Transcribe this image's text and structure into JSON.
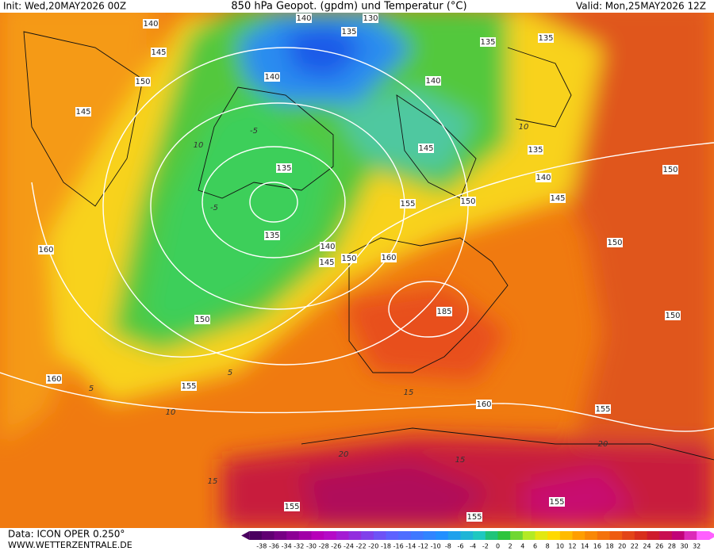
{
  "header": {
    "init": "Init: Wed,20MAY2026 00Z",
    "title": "850 hPa Geopot. (gpdm) und Temperatur (°C)",
    "valid": "Valid: Mon,25MAY2026 12Z"
  },
  "footer": {
    "data_source": "Data: ICON OPER 0.250°",
    "website": "WWW.WETTERZENTRALE.DE"
  },
  "colorbar_labels": [
    "-38",
    "-36",
    "-34",
    "-32",
    "-30",
    "-28",
    "-26",
    "-24",
    "-22",
    "-20",
    "-18",
    "-16",
    "-14",
    "-12",
    "-10",
    "-8",
    "-6",
    "-4",
    "-2",
    "0",
    "2",
    "4",
    "6",
    "8",
    "10",
    "12",
    "14",
    "16",
    "18",
    "20",
    "22",
    "24",
    "26",
    "28",
    "30",
    "32"
  ],
  "geopotential_labels": [
    "140",
    "140",
    "130",
    "135",
    "135",
    "135",
    "145",
    "150",
    "145",
    "140",
    "140",
    "135",
    "135",
    "145",
    "135",
    "140",
    "145",
    "150",
    "155",
    "150",
    "160",
    "140",
    "145",
    "150",
    "160",
    "150",
    "185",
    "150",
    "150",
    "160",
    "155",
    "160",
    "155",
    "155",
    "155",
    "155"
  ],
  "temperature_labels": [
    "10",
    "-5",
    "-5",
    "5",
    "10",
    "15",
    "20",
    "15",
    "10",
    "5",
    "15",
    "20"
  ]
}
